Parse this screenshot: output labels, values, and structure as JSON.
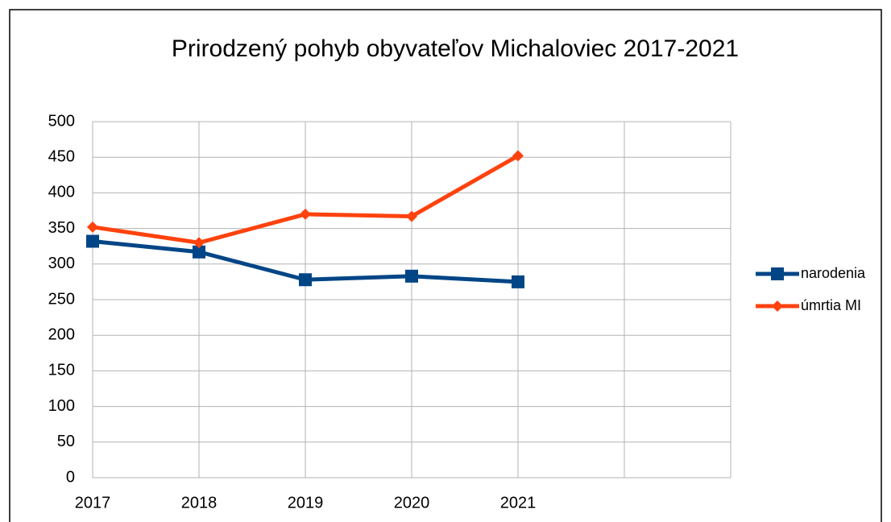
{
  "chart_data": {
    "type": "line",
    "title": "Prirodzený pohyb obyvateľov Michaloviec 2017-2021",
    "categories": [
      "2017",
      "2018",
      "2019",
      "2020",
      "2021",
      null,
      null
    ],
    "series": [
      {
        "name": "narodenia",
        "color": "#004586",
        "marker": "square",
        "values": [
          332,
          317,
          278,
          283,
          275,
          null,
          null
        ]
      },
      {
        "name": "úmrtia MI",
        "color": "#ff420e",
        "marker": "diamond",
        "values": [
          352,
          330,
          370,
          367,
          452,
          null,
          null
        ]
      }
    ],
    "ylim": [
      0,
      500
    ],
    "yticks": [
      0,
      50,
      100,
      150,
      200,
      250,
      300,
      350,
      400,
      450,
      500
    ],
    "grid": true,
    "legend": "right"
  }
}
